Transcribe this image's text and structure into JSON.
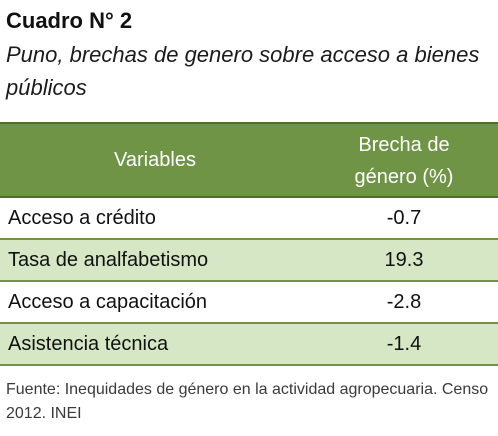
{
  "title": "Cuadro N° 2",
  "subtitle": "Puno, brechas de genero sobre acceso a bienes públicos",
  "table": {
    "header": {
      "variables": "Variables",
      "brecha_line1": "Brecha de",
      "brecha_line2": "género (%)"
    },
    "rows": [
      {
        "variable": "Acceso a crédito",
        "value": "-0.7"
      },
      {
        "variable": "Tasa de analfabetismo",
        "value": "19.3"
      },
      {
        "variable": "Acceso a capacitación",
        "value": "-2.8"
      },
      {
        "variable": "Asistencia técnica",
        "value": "-1.4"
      }
    ]
  },
  "source": "Fuente: Inequidades de género en la actividad agropecuaria. Censo 2012. INEI",
  "colors": {
    "header_bg": "#6f9445",
    "alt_row_bg": "#d5e7c5",
    "rule": "#4f6f2c"
  }
}
